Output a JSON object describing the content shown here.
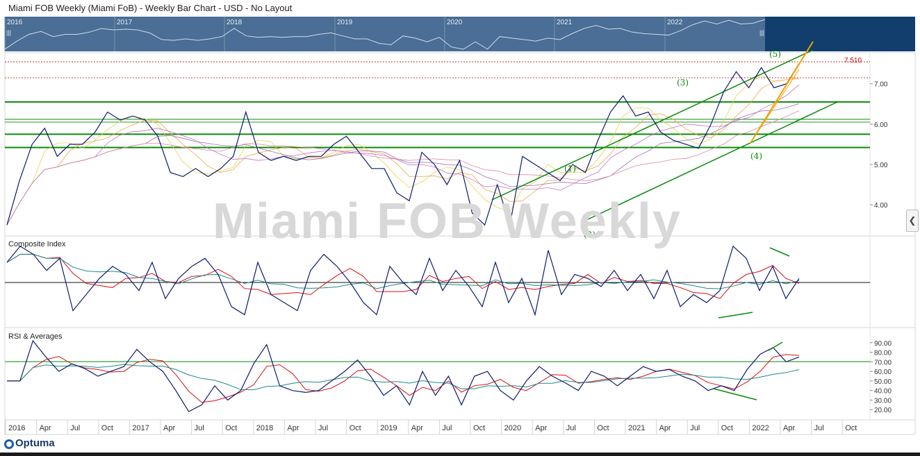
{
  "header": {
    "title": "Miami FOB Weekly (Miami FoB) - Weekly Bar Chart - USD - No Layout"
  },
  "watermark": "Miami FOB Weekly",
  "overview": {
    "year_labels": [
      "2016",
      "2017",
      "2018",
      "2019",
      "2020",
      "2021",
      "2022"
    ]
  },
  "panels": {
    "composite_label": "Composite Index",
    "rsi_label": "RSI & Averages"
  },
  "price_marker": "7.510",
  "wave_labels": [
    "(1)",
    "(2)",
    "(3)",
    "(4)",
    "(5)"
  ],
  "collapse_icon": "chevron-left-icon",
  "logo": {
    "text": "Optuma"
  },
  "colors": {
    "price": "#0d1b6e",
    "support": "#0a8a0a",
    "trend": "#f5a000",
    "marker": "#cc0000",
    "overview_bg": "#4a6e95",
    "overview_dark": "#123e6e"
  },
  "chart_data": [
    {
      "type": "line",
      "name": "price",
      "x": [
        "2016-01",
        "2016-02",
        "2016-03",
        "2016-04",
        "2016-05",
        "2016-07",
        "2016-09",
        "2016-11",
        "2017-01",
        "2017-02",
        "2017-03",
        "2017-04",
        "2017-05",
        "2017-06",
        "2017-07",
        "2017-08",
        "2017-09",
        "2017-11",
        "2018-01",
        "2018-03",
        "2018-04",
        "2018-05",
        "2018-06",
        "2018-08",
        "2018-10",
        "2018-12",
        "2019-02",
        "2019-04",
        "2019-05",
        "2019-06",
        "2019-07",
        "2019-08",
        "2019-09",
        "2019-10",
        "2019-11",
        "2019-12",
        "2020-01",
        "2020-02",
        "2020-03",
        "2020-04",
        "2020-05",
        "2020-06",
        "2020-07",
        "2020-08",
        "2020-09",
        "2020-10",
        "2020-11",
        "2020-12",
        "2021-01",
        "2021-02",
        "2021-03",
        "2021-04",
        "2021-05",
        "2021-06",
        "2021-07",
        "2021-08",
        "2021-09",
        "2021-10",
        "2021-11",
        "2021-12",
        "2022-01",
        "2022-02",
        "2022-03",
        "2022-04"
      ],
      "y": [
        3.5,
        4.6,
        5.5,
        5.9,
        5.2,
        5.5,
        5.5,
        5.8,
        6.3,
        6.1,
        6.2,
        6.1,
        5.7,
        4.8,
        4.7,
        4.9,
        4.7,
        4.9,
        5.2,
        6.3,
        5.3,
        5.1,
        5.2,
        5.1,
        5.2,
        5.2,
        5.5,
        5.7,
        5.3,
        4.9,
        4.9,
        4.3,
        4.1,
        5.3,
        5.0,
        4.5,
        5.1,
        3.8,
        3.5,
        4.5,
        3.5,
        5.2,
        5.0,
        4.8,
        4.6,
        5.0,
        4.8,
        5.6,
        6.3,
        6.7,
        6.2,
        6.3,
        5.8,
        5.6,
        5.5,
        5.4,
        6.0,
        6.8,
        7.3,
        6.9,
        7.4,
        6.9,
        7.0,
        7.5
      ],
      "ylim": [
        3.4,
        7.7
      ],
      "y_ticks": [
        "4.00",
        "5.00",
        "6.00",
        "7.00"
      ],
      "x_ticks": [
        "2016",
        "Apr",
        "Jul",
        "Oct",
        "2017",
        "Apr",
        "Jul",
        "Oct",
        "2018",
        "Apr",
        "Jul",
        "Oct",
        "2019",
        "Apr",
        "Jul",
        "Oct",
        "2020",
        "Apr",
        "Jul",
        "Oct",
        "2021",
        "Apr",
        "Jul",
        "Oct",
        "2022",
        "Apr",
        "Jul",
        "Oct"
      ],
      "horizontal_levels": [
        6.55,
        6.12,
        5.75,
        5.42
      ],
      "marker_level": 7.51
    },
    {
      "type": "line",
      "name": "Composite Index",
      "y": [
        0.5,
        0.9,
        0.7,
        0.3,
        0.6,
        -0.7,
        -0.3,
        0.1,
        0.4,
        0.2,
        -0.2,
        0.5,
        -0.4,
        0.1,
        0.4,
        0.6,
        0.2,
        -0.6,
        -0.8,
        0.5,
        -0.3,
        -0.5,
        -0.7,
        0.3,
        0.7,
        0.4,
        0.0,
        -0.5,
        -0.8,
        0.4,
        0.0,
        -0.3,
        0.6,
        -0.2,
        0.3,
        -0.1,
        -0.6,
        0.5,
        -0.5,
        0.1,
        -0.8,
        0.8,
        -0.3,
        0.2,
        0.1,
        -0.1,
        0.3,
        -0.2,
        0.2,
        -0.4,
        0.3,
        -0.6,
        -0.3,
        -0.5,
        -0.2,
        0.9,
        0.6,
        -0.2,
        0.4,
        -0.4,
        0.1
      ]
    },
    {
      "type": "line",
      "name": "RSI & Averages",
      "y": [
        50,
        50,
        92,
        75,
        60,
        68,
        63,
        55,
        60,
        65,
        83,
        70,
        60,
        40,
        18,
        25,
        45,
        30,
        40,
        68,
        88,
        45,
        40,
        38,
        40,
        50,
        60,
        72,
        55,
        35,
        45,
        25,
        60,
        35,
        55,
        25,
        55,
        60,
        40,
        30,
        50,
        65,
        55,
        48,
        40,
        60,
        55,
        45,
        55,
        65,
        60,
        62,
        55,
        50,
        40,
        45,
        40,
        62,
        78,
        85,
        70,
        75
      ],
      "ylim": [
        10,
        100
      ],
      "y_ticks": [
        "20.00",
        "30.00",
        "40.00",
        "50.00",
        "60.00",
        "70.00",
        "80.00",
        "90.00"
      ],
      "reference_level": 71
    }
  ]
}
